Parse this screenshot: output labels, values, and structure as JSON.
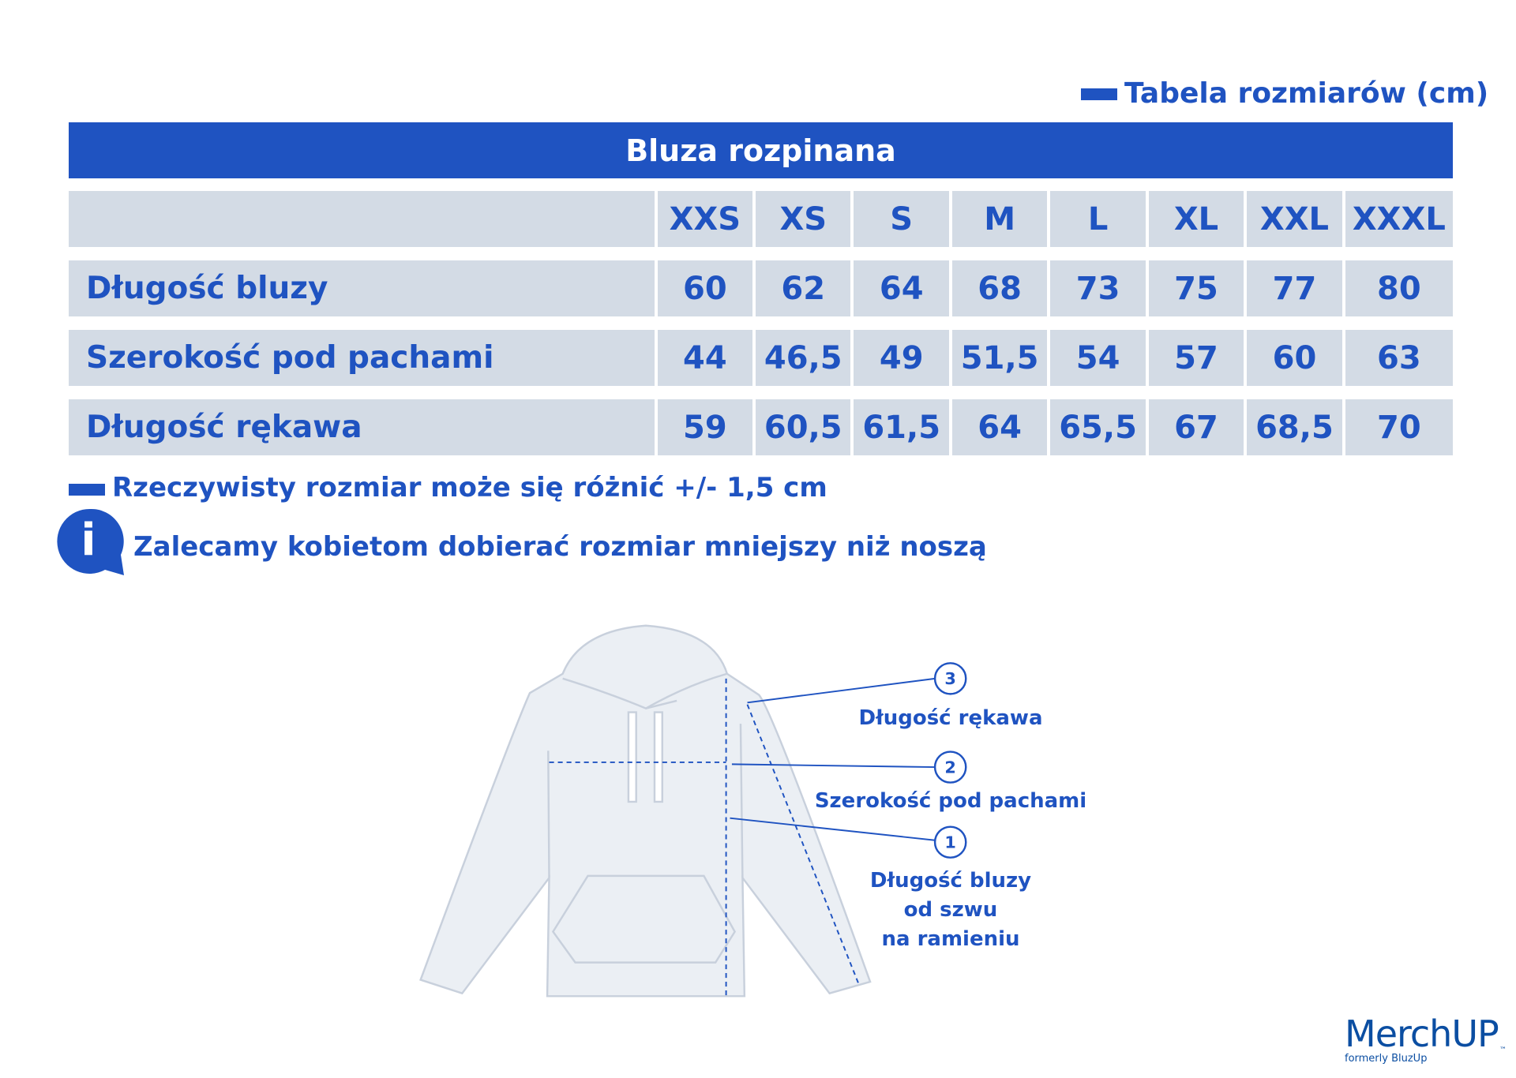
{
  "legend": {
    "label": "Tabela rozmiarów (cm)"
  },
  "title": "Bluza rozpinana",
  "table": {
    "sizes": [
      "XXS",
      "XS",
      "S",
      "M",
      "L",
      "XL",
      "XXL",
      "XXXL"
    ],
    "rows": [
      {
        "label": "Długość bluzy",
        "values": [
          "60",
          "62",
          "64",
          "68",
          "73",
          "75",
          "77",
          "80"
        ]
      },
      {
        "label": "Szerokość pod pachami",
        "values": [
          "44",
          "46,5",
          "49",
          "51,5",
          "54",
          "57",
          "60",
          "63"
        ]
      },
      {
        "label": "Długość rękawa",
        "values": [
          "59",
          "60,5",
          "61,5",
          "64",
          "65,5",
          "67",
          "68,5",
          "70"
        ]
      }
    ]
  },
  "notes": {
    "tolerance": "Rzeczywisty rozmiar może się różnić +/- 1,5 cm",
    "recommendation": "Zalecamy kobietom dobierać rozmiar mniejszy niż noszą",
    "info_icon_glyph": "i"
  },
  "diagram": {
    "callouts": [
      {
        "number": "3",
        "lines": [
          "Długość rękawa"
        ]
      },
      {
        "number": "2",
        "lines": [
          "Szerokość pod pachami"
        ]
      },
      {
        "number": "1",
        "lines": [
          "Długość bluzy",
          "od szwu",
          "na ramieniu"
        ]
      }
    ]
  },
  "brand": {
    "name": "MerchUP",
    "tagline": "formerly BluzUp",
    "tm": "™"
  },
  "colors": {
    "accent": "#1f53c1",
    "cell": "#d3dbe5",
    "garment": "#ebeff4",
    "logo": "#0b4ea2"
  }
}
